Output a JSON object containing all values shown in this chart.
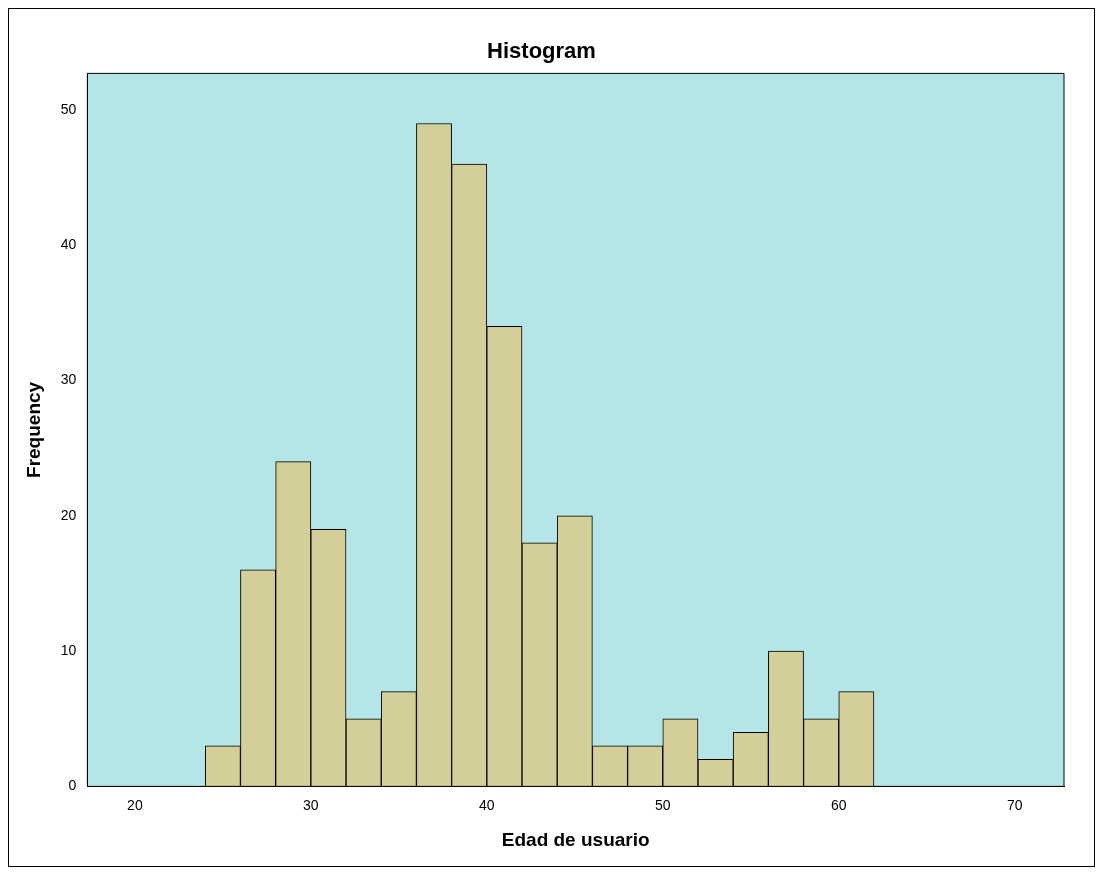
{
  "chart_data": {
    "type": "histogram",
    "title": "Histogram",
    "xlabel": "Edad de usuario",
    "ylabel": "Frequency",
    "bins": [
      24,
      26,
      28,
      30,
      32,
      34,
      36,
      38,
      40,
      42,
      44,
      46,
      48,
      50,
      52,
      54,
      56,
      58,
      60,
      62
    ],
    "values": [
      3,
      16,
      24,
      19,
      5,
      7,
      49,
      46,
      34,
      18,
      20,
      3,
      3,
      5,
      2,
      4,
      10,
      5,
      7
    ],
    "color": "#d4cf98",
    "xlim": [
      17.3,
      72.8
    ],
    "xticks": [
      20,
      30,
      40,
      50,
      60,
      70
    ],
    "ylim": [
      0,
      52.7
    ],
    "yticks": [
      0,
      10,
      20,
      30,
      40,
      50
    ],
    "grid": false,
    "legend": false
  }
}
